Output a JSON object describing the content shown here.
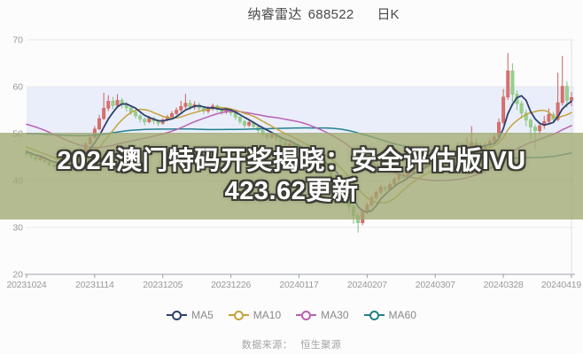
{
  "header": {
    "stock_name": "纳睿雷达",
    "stock_code": "688522",
    "period_label": "日K"
  },
  "watermark": {
    "line1": "2024澳门特码开奖揭晓：安全评估版IVU",
    "line2": "423.62更新"
  },
  "footer": {
    "source_label": "数据来源：",
    "source_value": "恒生聚源"
  },
  "legend": [
    {
      "label": "MA5",
      "key": "ma5"
    },
    {
      "label": "MA10",
      "key": "ma10"
    },
    {
      "label": "MA30",
      "key": "ma30"
    },
    {
      "label": "MA60",
      "key": "ma60"
    }
  ],
  "chart_data": {
    "type": "candlestick",
    "title": "纳睿雷达 688522 日K",
    "ylim": [
      20,
      70
    ],
    "y_ticks": [
      70,
      60,
      50,
      40,
      30,
      20
    ],
    "x_tick_labels": [
      "20231024",
      "20231114",
      "20231205",
      "20231226",
      "20240117",
      "20240207",
      "20240307",
      "20240328",
      "20240419"
    ],
    "x_tick_indices": [
      0,
      15,
      30,
      45,
      60,
      75,
      90,
      105,
      120
    ],
    "ma_periods": {
      "ma5": 5,
      "ma10": 10,
      "ma30": 30,
      "ma60": 60
    },
    "colors": {
      "up": "#d6716f",
      "up_border": "#cd5f5d",
      "down": "#97d08c",
      "down_border": "#85c17a",
      "ma5": "#2e3f6e",
      "ma10": "#c5a23d",
      "ma30": "#bb5fb4",
      "ma60": "#22808e",
      "grid": "#e8e8ec",
      "axis": "#9aa0a6",
      "label": "#999999",
      "band": "#e9eefa",
      "right_border": "#e0e0e4"
    },
    "band": {
      "from": 50,
      "to": 60
    },
    "pre_closes": [
      46.8,
      47.0,
      46.7,
      46.9,
      47.2,
      47.0,
      46.8,
      47.1,
      47.3,
      47.0,
      46.9,
      47.2,
      47.4,
      47.1,
      47.0,
      47.3,
      47.5,
      47.2,
      47.4,
      47.6,
      47.8,
      48.0,
      48.3,
      48.6,
      49.0,
      49.5,
      50.0,
      50.6,
      51.2,
      51.9,
      52.6,
      53.3,
      54.0,
      54.7,
      55.4,
      56.0,
      56.5,
      56.9,
      57.2,
      57.0,
      56.6,
      56.1,
      55.5,
      54.8,
      54.1,
      53.4,
      52.7,
      52.0,
      51.3,
      50.6,
      49.9,
      49.3,
      48.7,
      48.2,
      47.7,
      47.2,
      46.8,
      46.4,
      46.1,
      45.9
    ],
    "candles": [
      [
        46.0,
        45.6,
        45.2,
        46.6
      ],
      [
        45.6,
        45.1,
        44.7,
        45.9
      ],
      [
        45.1,
        44.5,
        44.1,
        45.3
      ],
      [
        44.5,
        44.9,
        44.2,
        45.2
      ],
      [
        44.9,
        44.0,
        43.6,
        45.0
      ],
      [
        44.0,
        43.3,
        42.9,
        44.2
      ],
      [
        43.3,
        43.0,
        42.6,
        43.6
      ],
      [
        43.0,
        43.8,
        42.8,
        44.1
      ],
      [
        43.8,
        44.4,
        43.5,
        44.8
      ],
      [
        44.4,
        44.1,
        43.7,
        44.7
      ],
      [
        44.1,
        44.9,
        43.9,
        45.2
      ],
      [
        44.9,
        45.7,
        44.6,
        46.0
      ],
      [
        45.7,
        46.5,
        45.4,
        46.9
      ],
      [
        46.5,
        47.8,
        46.3,
        48.3
      ],
      [
        47.8,
        49.2,
        47.5,
        49.8
      ],
      [
        49.2,
        51.0,
        48.9,
        51.6
      ],
      [
        51.0,
        53.2,
        50.7,
        54.0
      ],
      [
        53.2,
        55.4,
        52.9,
        58.7
      ],
      [
        55.4,
        56.9,
        54.8,
        58.2
      ],
      [
        56.9,
        56.0,
        55.2,
        57.8
      ],
      [
        56.0,
        57.1,
        55.5,
        58.4
      ],
      [
        57.1,
        56.2,
        55.4,
        57.6
      ],
      [
        56.2,
        55.5,
        54.7,
        56.8
      ],
      [
        55.5,
        54.6,
        54.0,
        55.9
      ],
      [
        54.6,
        53.8,
        53.2,
        55.0
      ],
      [
        53.8,
        53.1,
        52.4,
        54.1
      ],
      [
        53.1,
        52.5,
        51.8,
        53.4
      ],
      [
        52.5,
        53.3,
        52.2,
        53.8
      ],
      [
        53.3,
        52.7,
        52.0,
        53.6
      ],
      [
        52.7,
        52.2,
        51.6,
        53.0
      ],
      [
        52.2,
        52.9,
        51.9,
        53.3
      ],
      [
        52.9,
        53.6,
        52.6,
        54.0
      ],
      [
        53.6,
        54.3,
        53.3,
        54.8
      ],
      [
        54.3,
        55.0,
        54.0,
        55.6
      ],
      [
        55.0,
        55.8,
        54.6,
        57.0
      ],
      [
        55.8,
        56.5,
        55.3,
        58.5
      ],
      [
        56.5,
        55.7,
        55.0,
        57.2
      ],
      [
        55.7,
        56.2,
        55.1,
        56.9
      ],
      [
        56.2,
        55.4,
        54.8,
        56.6
      ],
      [
        55.4,
        54.8,
        54.2,
        55.8
      ],
      [
        54.8,
        55.3,
        54.3,
        55.9
      ],
      [
        55.3,
        55.9,
        54.9,
        56.4
      ],
      [
        55.9,
        55.2,
        54.6,
        56.2
      ],
      [
        55.2,
        54.6,
        54.0,
        55.5
      ],
      [
        54.6,
        55.1,
        54.2,
        55.6
      ],
      [
        55.1,
        54.4,
        53.8,
        55.4
      ],
      [
        54.4,
        53.5,
        52.9,
        54.6
      ],
      [
        53.5,
        52.6,
        52.0,
        53.7
      ],
      [
        52.6,
        51.8,
        51.2,
        52.9
      ],
      [
        51.8,
        52.4,
        51.4,
        52.8
      ],
      [
        52.4,
        51.5,
        50.9,
        52.6
      ],
      [
        51.5,
        50.7,
        50.1,
        51.8
      ],
      [
        50.7,
        49.9,
        49.3,
        51.0
      ],
      [
        49.9,
        49.2,
        48.6,
        50.2
      ],
      [
        49.2,
        49.8,
        48.9,
        50.3
      ],
      [
        49.8,
        48.9,
        48.3,
        50.0
      ],
      [
        48.9,
        48.2,
        47.6,
        49.2
      ],
      [
        48.2,
        47.5,
        46.9,
        48.5
      ],
      [
        47.5,
        47.9,
        47.0,
        48.4
      ],
      [
        47.9,
        47.1,
        46.5,
        48.1
      ],
      [
        47.1,
        46.5,
        45.9,
        47.5
      ],
      [
        46.5,
        45.6,
        44.9,
        46.7
      ],
      [
        45.6,
        44.7,
        44.0,
        45.8
      ],
      [
        44.7,
        43.8,
        43.1,
        44.9
      ],
      [
        43.8,
        44.4,
        43.3,
        44.9
      ],
      [
        44.4,
        43.4,
        42.7,
        44.6
      ],
      [
        43.4,
        42.3,
        41.5,
        43.6
      ],
      [
        42.3,
        41.0,
        40.2,
        42.5
      ],
      [
        41.0,
        39.5,
        38.6,
        41.3
      ],
      [
        39.5,
        38.0,
        37.0,
        39.8
      ],
      [
        38.0,
        36.2,
        35.1,
        38.3
      ],
      [
        36.2,
        34.5,
        33.2,
        36.5
      ],
      [
        34.5,
        32.5,
        30.8,
        34.8
      ],
      [
        32.5,
        31.0,
        28.9,
        33.0
      ],
      [
        31.0,
        33.4,
        30.5,
        33.9
      ],
      [
        33.4,
        34.8,
        32.8,
        35.3
      ],
      [
        34.8,
        36.3,
        34.4,
        36.8
      ],
      [
        36.3,
        37.5,
        35.9,
        38.0
      ],
      [
        37.5,
        38.6,
        37.1,
        39.1
      ],
      [
        38.6,
        38.1,
        37.5,
        39.0
      ],
      [
        38.1,
        39.2,
        37.8,
        39.7
      ],
      [
        39.2,
        40.3,
        38.9,
        40.8
      ],
      [
        40.3,
        41.2,
        39.9,
        41.7
      ],
      [
        41.2,
        40.6,
        40.0,
        41.6
      ],
      [
        40.6,
        41.7,
        40.3,
        42.2
      ],
      [
        41.7,
        42.6,
        41.3,
        43.1
      ],
      [
        42.6,
        43.4,
        42.2,
        43.9
      ],
      [
        43.4,
        42.9,
        42.3,
        43.9
      ],
      [
        42.9,
        43.8,
        42.6,
        44.3
      ],
      [
        43.8,
        44.6,
        43.4,
        45.1
      ],
      [
        44.6,
        44.2,
        43.6,
        45.0
      ],
      [
        44.2,
        45.1,
        43.9,
        45.6
      ],
      [
        45.1,
        45.9,
        44.7,
        46.4
      ],
      [
        45.9,
        45.3,
        44.7,
        46.2
      ],
      [
        45.3,
        46.2,
        45.0,
        46.8
      ],
      [
        46.2,
        47.1,
        45.9,
        48.0
      ],
      [
        47.1,
        46.4,
        45.7,
        48.1
      ],
      [
        46.4,
        47.3,
        46.0,
        49.2
      ],
      [
        47.3,
        48.1,
        46.9,
        51.6
      ],
      [
        48.1,
        47.4,
        46.7,
        48.9
      ],
      [
        47.4,
        46.8,
        46.1,
        47.9
      ],
      [
        46.8,
        47.6,
        46.4,
        48.2
      ],
      [
        47.6,
        48.4,
        47.2,
        49.0
      ],
      [
        48.4,
        49.3,
        48.0,
        50.0
      ],
      [
        49.3,
        52.4,
        49.0,
        53.2
      ],
      [
        52.4,
        57.8,
        52.0,
        59.5
      ],
      [
        57.8,
        63.4,
        57.2,
        67.2
      ],
      [
        63.4,
        58.4,
        56.8,
        65.0
      ],
      [
        58.4,
        56.4,
        55.0,
        59.2
      ],
      [
        56.4,
        54.4,
        53.2,
        57.0
      ],
      [
        54.4,
        52.9,
        51.6,
        55.1
      ],
      [
        52.9,
        51.4,
        48.8,
        53.3
      ],
      [
        51.4,
        50.6,
        46.7,
        51.9
      ],
      [
        50.6,
        51.7,
        49.9,
        52.4
      ],
      [
        51.7,
        52.6,
        51.0,
        53.8
      ],
      [
        52.6,
        54.1,
        52.1,
        55.4
      ],
      [
        54.1,
        53.0,
        52.2,
        54.6
      ],
      [
        53.0,
        56.6,
        52.7,
        63.0
      ],
      [
        56.6,
        60.1,
        56.0,
        66.6
      ],
      [
        60.1,
        57.1,
        55.6,
        61.2
      ],
      [
        57.1,
        57.7,
        55.9,
        58.9
      ]
    ]
  }
}
